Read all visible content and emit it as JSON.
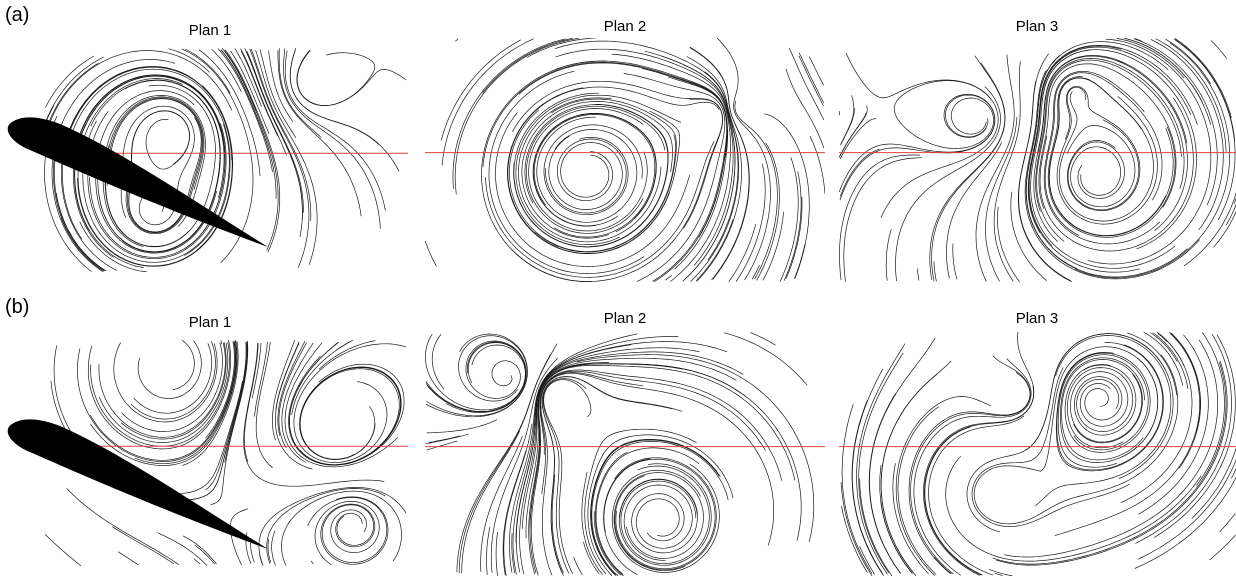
{
  "figure": {
    "rows": [
      {
        "label": "(a)",
        "panels": [
          {
            "title": "Plan 1"
          },
          {
            "title": "Plan 2"
          },
          {
            "title": "Plan 3"
          }
        ]
      },
      {
        "label": "(b)",
        "panels": [
          {
            "title": "Plan 1"
          },
          {
            "title": "Plan 2"
          },
          {
            "title": "Plan 3"
          }
        ]
      }
    ],
    "colors": {
      "streamline": "#1a1a1a",
      "reference_line": "#e0403a",
      "airfoil": "#000000"
    }
  }
}
